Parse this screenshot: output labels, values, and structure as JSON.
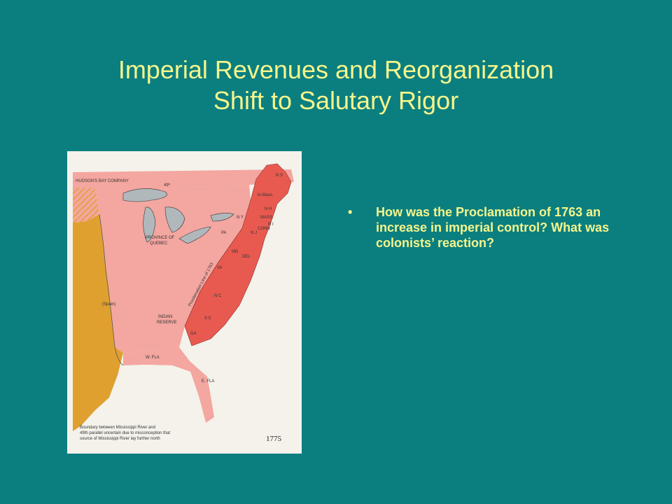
{
  "slide": {
    "title_line1": "Imperial Revenues and Reorganization",
    "title_line2": "Shift to Salutary Rigor",
    "bullets": [
      {
        "marker": "•",
        "text": "How was the Proclamation of 1763 an increase in imperial control? What was colonists’ reaction?"
      }
    ]
  },
  "map": {
    "year": "1775",
    "labels": {
      "hudson_bay": "HUDSON'S BAY COMPANY",
      "parallel": "49º",
      "province_quebec_1": "PROVINCE OF",
      "province_quebec_2": "QUEBEC",
      "spain": "(Spain)",
      "indian_reserve_1": "INDIAN",
      "indian_reserve_2": "RESERVE",
      "w_fla": "W. FLA",
      "e_fla": "E. FLA",
      "proclamation_line": "Proclamation Line of 1763",
      "ns": "N S",
      "mass_district": "to Mass.",
      "nh": "N H",
      "mass": "MASS",
      "ri": "R I",
      "conn": "CONN",
      "ny": "N Y",
      "nj": "N J",
      "pa": "PA",
      "md": "MD",
      "del": "DEL",
      "va": "VA",
      "nc": "N C",
      "sc": "S C",
      "ga": "GA"
    },
    "note_lines": [
      "Boundary between Mississippi River and",
      "49th parallel uncertain due to misconception that",
      "source of Mississippi River lay further north"
    ],
    "colors": {
      "spanish_territory": "#e0a030",
      "british_territory": "#f4a6a0",
      "thirteen_colonies": "#e85a50",
      "water": "#b0b8bc",
      "paper": "#f4f2ea"
    }
  }
}
